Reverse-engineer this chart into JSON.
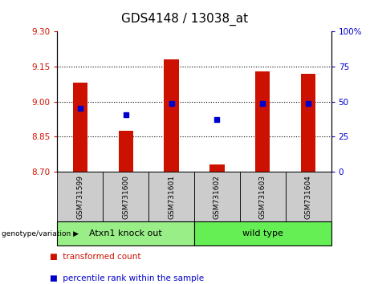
{
  "title": "GDS4148 / 13038_at",
  "samples": [
    "GSM731599",
    "GSM731600",
    "GSM731601",
    "GSM731602",
    "GSM731603",
    "GSM731604"
  ],
  "bar_values": [
    9.08,
    8.875,
    9.18,
    8.73,
    9.13,
    9.12
  ],
  "bar_bottom": 8.7,
  "percentile_values": [
    8.972,
    8.943,
    8.993,
    8.923,
    8.993,
    8.993
  ],
  "left_ylim": [
    8.7,
    9.3
  ],
  "left_yticks": [
    8.7,
    8.85,
    9.0,
    9.15,
    9.3
  ],
  "right_yticks": [
    0,
    25,
    50,
    75,
    100
  ],
  "right_yticklabels": [
    "0",
    "25",
    "50",
    "75",
    "100%"
  ],
  "bar_color": "#cc1100",
  "dot_color": "#0000cc",
  "groups": [
    {
      "label": "Atxn1 knock out",
      "indices": [
        0,
        1,
        2
      ],
      "color": "#99ee88"
    },
    {
      "label": "wild type",
      "indices": [
        3,
        4,
        5
      ],
      "color": "#66ee55"
    }
  ],
  "sample_label_color": "#cccccc",
  "title_fontsize": 11,
  "tick_fontsize": 7.5,
  "sample_fontsize": 6.5,
  "group_fontsize": 8,
  "legend_fontsize": 7.5
}
